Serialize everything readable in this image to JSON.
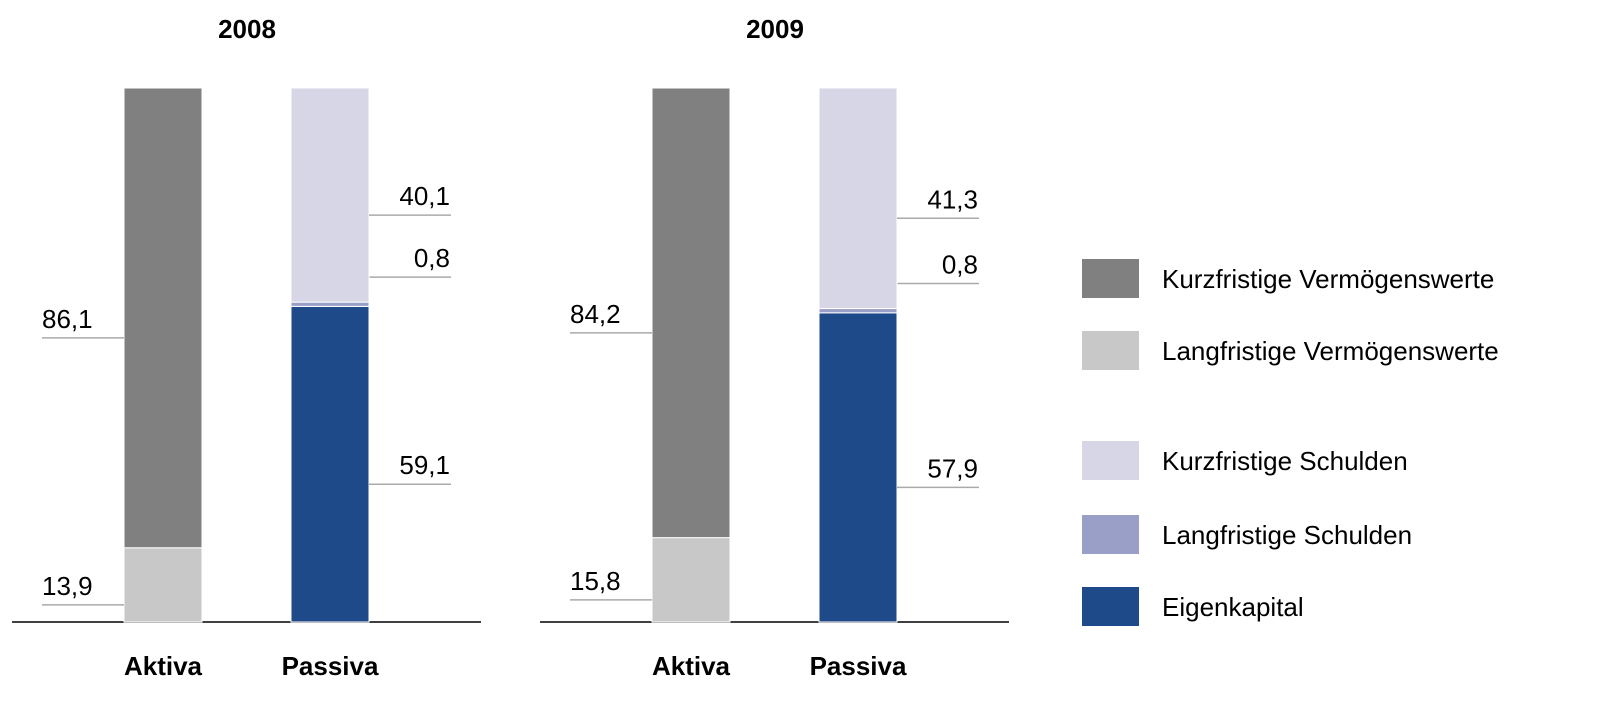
{
  "chart_data": [
    {
      "type": "bar",
      "stacked": true,
      "title": "2008",
      "categories": [
        "Aktiva",
        "Passiva"
      ],
      "ylim": [
        0,
        100
      ],
      "series": [
        {
          "name": "Kurzfristige Vermögenswerte",
          "color": "#808080",
          "values": [
            86.1,
            null
          ],
          "value_labels": [
            "86,1",
            null
          ]
        },
        {
          "name": "Langfristige Vermögenswerte",
          "color": "#c8c8c8",
          "values": [
            13.9,
            null
          ],
          "value_labels": [
            "13,9",
            null
          ]
        },
        {
          "name": "Kurzfristige Schulden",
          "color": "#d6d6e6",
          "values": [
            null,
            40.1
          ],
          "value_labels": [
            null,
            "40,1"
          ]
        },
        {
          "name": "Langfristige Schulden",
          "color": "#9a9fc8",
          "values": [
            null,
            0.8
          ],
          "value_labels": [
            null,
            "0,8"
          ]
        },
        {
          "name": "Eigenkapital",
          "color": "#1f4a8a",
          "values": [
            null,
            59.1
          ],
          "value_labels": [
            null,
            "59,1"
          ]
        }
      ]
    },
    {
      "type": "bar",
      "stacked": true,
      "title": "2009",
      "categories": [
        "Aktiva",
        "Passiva"
      ],
      "ylim": [
        0,
        100
      ],
      "series": [
        {
          "color": "#808080",
          "values": [
            84.2,
            null
          ],
          "value_labels": [
            "84,2",
            null
          ]
        },
        {
          "color": "#c8c8c8",
          "values": [
            15.8,
            null
          ],
          "value_labels": [
            "15,8",
            null
          ]
        },
        {
          "color": "#d6d6e6",
          "values": [
            null,
            41.3
          ],
          "value_labels": [
            null,
            "41,3"
          ]
        },
        {
          "color": "#9a9fc8",
          "values": [
            null,
            0.8
          ],
          "value_labels": [
            null,
            "0,8"
          ]
        },
        {
          "color": "#1f4a8a",
          "values": [
            null,
            57.9
          ],
          "value_labels": [
            null,
            "57,9"
          ]
        }
      ]
    }
  ]
}
